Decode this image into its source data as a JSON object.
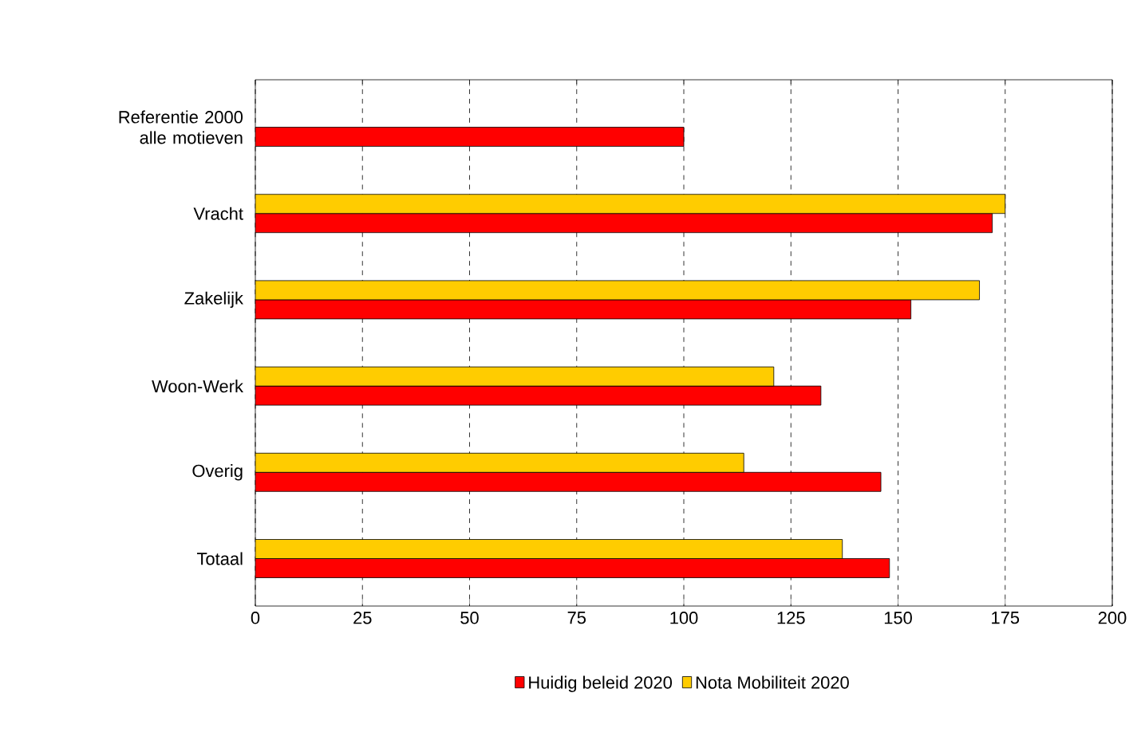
{
  "chart_data": {
    "type": "bar",
    "orientation": "horizontal",
    "categories": [
      "Referentie 2000 alle motieven",
      "Vracht",
      "Zakelijk",
      "Woon-Werk",
      "Overig",
      "Totaal"
    ],
    "series": [
      {
        "name": "Huidig beleid 2020",
        "color": "#ff0000",
        "values": [
          100,
          172,
          153,
          132,
          146,
          148
        ]
      },
      {
        "name": "Nota Mobiliteit 2020",
        "color": "#ffcc00",
        "values": [
          null,
          175,
          169,
          121,
          114,
          137
        ]
      }
    ],
    "xlim": [
      0,
      200
    ],
    "xticks": [
      0,
      25,
      50,
      75,
      100,
      125,
      150,
      175,
      200
    ],
    "grid": "x",
    "legend": "bottom"
  }
}
